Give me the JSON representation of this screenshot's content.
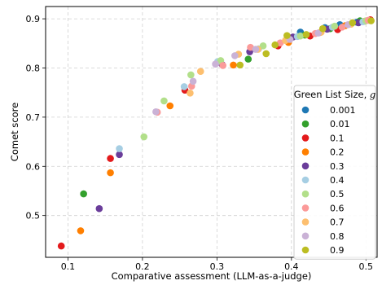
{
  "chart_data": {
    "type": "scatter",
    "title": "",
    "xlabel": "Comparative assessment (LLM-as-a-judge)",
    "ylabel": "Comet score",
    "xlim": [
      0.07,
      0.515
    ],
    "ylim": [
      0.415,
      0.925
    ],
    "x_ticks": [
      0.1,
      0.2,
      0.3,
      0.4,
      0.5
    ],
    "y_ticks": [
      0.5,
      0.6,
      0.7,
      0.8,
      0.9
    ],
    "x_tick_labels": [
      "0.1",
      "0.2",
      "0.3",
      "0.4",
      "0.5"
    ],
    "y_tick_labels": [
      "0.5",
      "0.6",
      "0.7",
      "0.8",
      "0.9"
    ],
    "grid": true,
    "legend": {
      "title": "Green List Size, g",
      "placement": "lower-right"
    },
    "series": [
      {
        "name": "0.001",
        "color": "#1f78b4",
        "points": [
          [
            0.412,
            0.873
          ],
          [
            0.445,
            0.882
          ],
          [
            0.465,
            0.888
          ],
          [
            0.488,
            0.893
          ],
          [
            0.505,
            0.897
          ]
        ]
      },
      {
        "name": "0.01",
        "color": "#33a02c",
        "points": [
          [
            0.121,
            0.544
          ],
          [
            0.342,
            0.818
          ],
          [
            0.418,
            0.867
          ],
          [
            0.452,
            0.88
          ],
          [
            0.492,
            0.896
          ]
        ]
      },
      {
        "name": "0.1",
        "color": "#e31a1c",
        "points": [
          [
            0.091,
            0.438
          ],
          [
            0.157,
            0.616
          ],
          [
            0.257,
            0.755
          ],
          [
            0.382,
            0.845
          ],
          [
            0.425,
            0.865
          ],
          [
            0.462,
            0.878
          ],
          [
            0.506,
            0.898
          ]
        ]
      },
      {
        "name": "0.2",
        "color": "#ff7f00",
        "points": [
          [
            0.117,
            0.469
          ],
          [
            0.157,
            0.587
          ],
          [
            0.237,
            0.723
          ],
          [
            0.322,
            0.806
          ],
          [
            0.396,
            0.852
          ],
          [
            0.438,
            0.872
          ],
          [
            0.472,
            0.886
          ],
          [
            0.498,
            0.895
          ]
        ]
      },
      {
        "name": "0.3",
        "color": "#6a3d9a",
        "points": [
          [
            0.142,
            0.514
          ],
          [
            0.169,
            0.624
          ],
          [
            0.307,
            0.807
          ],
          [
            0.344,
            0.833
          ],
          [
            0.402,
            0.863
          ],
          [
            0.448,
            0.879
          ],
          [
            0.49,
            0.892
          ]
        ]
      },
      {
        "name": "0.4",
        "color": "#a6cee3",
        "points": [
          [
            0.169,
            0.636
          ],
          [
            0.256,
            0.762
          ],
          [
            0.301,
            0.813
          ],
          [
            0.356,
            0.839
          ],
          [
            0.408,
            0.864
          ],
          [
            0.455,
            0.883
          ],
          [
            0.496,
            0.894
          ]
        ]
      },
      {
        "name": "0.5",
        "color": "#b2df8a",
        "points": [
          [
            0.202,
            0.66
          ],
          [
            0.229,
            0.733
          ],
          [
            0.265,
            0.786
          ],
          [
            0.305,
            0.815
          ],
          [
            0.362,
            0.845
          ],
          [
            0.412,
            0.865
          ],
          [
            0.458,
            0.885
          ],
          [
            0.5,
            0.896
          ]
        ]
      },
      {
        "name": "0.6",
        "color": "#fb9a99",
        "points": [
          [
            0.22,
            0.71
          ],
          [
            0.266,
            0.763
          ],
          [
            0.308,
            0.805
          ],
          [
            0.345,
            0.842
          ],
          [
            0.385,
            0.851
          ],
          [
            0.432,
            0.87
          ],
          [
            0.468,
            0.883
          ],
          [
            0.503,
            0.897
          ]
        ]
      },
      {
        "name": "0.7",
        "color": "#fdbf6f",
        "points": [
          [
            0.264,
            0.749
          ],
          [
            0.278,
            0.793
          ],
          [
            0.329,
            0.828
          ],
          [
            0.355,
            0.838
          ],
          [
            0.392,
            0.856
          ],
          [
            0.44,
            0.873
          ],
          [
            0.48,
            0.889
          ]
        ]
      },
      {
        "name": "0.8",
        "color": "#cab2d6",
        "points": [
          [
            0.218,
            0.711
          ],
          [
            0.268,
            0.773
          ],
          [
            0.298,
            0.808
          ],
          [
            0.324,
            0.825
          ],
          [
            0.352,
            0.838
          ],
          [
            0.398,
            0.858
          ],
          [
            0.436,
            0.871
          ],
          [
            0.476,
            0.888
          ]
        ]
      },
      {
        "name": "0.9",
        "color": "#bcbd22",
        "points": [
          [
            0.331,
            0.806
          ],
          [
            0.366,
            0.829
          ],
          [
            0.378,
            0.847
          ],
          [
            0.394,
            0.866
          ],
          [
            0.42,
            0.868
          ],
          [
            0.442,
            0.88
          ],
          [
            0.482,
            0.892
          ],
          [
            0.507,
            0.896
          ]
        ]
      }
    ]
  }
}
